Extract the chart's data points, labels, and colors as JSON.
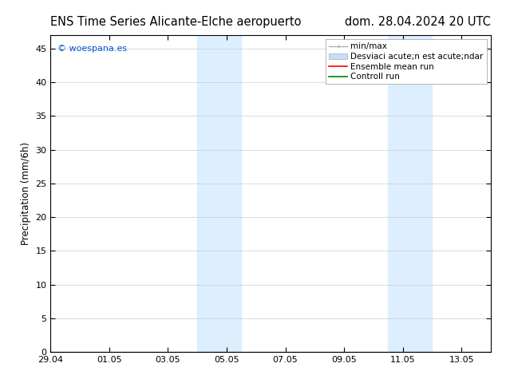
{
  "title_left": "ENS Time Series Alicante-Elche aeropuerto",
  "title_right": "dom. 28.04.2024 20 UTC",
  "ylabel": "Precipitation (mm/6h)",
  "watermark": "© woespana.es",
  "watermark_color": "#0055cc",
  "background_color": "#ffffff",
  "plot_bg_color": "#ffffff",
  "ylim": [
    0,
    47
  ],
  "yticks": [
    0,
    5,
    10,
    15,
    20,
    25,
    30,
    35,
    40,
    45
  ],
  "xlim": [
    0,
    15
  ],
  "xtick_labels": [
    "29.04",
    "01.05",
    "03.05",
    "05.05",
    "07.05",
    "09.05",
    "11.05",
    "13.05"
  ],
  "xtick_positions_days": [
    0,
    2,
    4,
    6,
    8,
    10,
    12,
    14
  ],
  "shaded_bands": [
    {
      "xstart_day": 5.0,
      "xend_day": 6.5,
      "color": "#ddeeff"
    },
    {
      "xstart_day": 11.5,
      "xend_day": 13.0,
      "color": "#ddeeff"
    }
  ],
  "legend_items": [
    {
      "label": "min/max",
      "color": "#aaaaaa",
      "type": "errbar"
    },
    {
      "label": "Desviaci acute;n est acute;ndar",
      "color": "#ccddf0",
      "type": "box"
    },
    {
      "label": "Ensemble mean run",
      "color": "#ff0000",
      "type": "line"
    },
    {
      "label": "Controll run",
      "color": "#008000",
      "type": "line"
    }
  ],
  "title_fontsize": 10.5,
  "axis_fontsize": 8.5,
  "tick_fontsize": 8,
  "legend_fontsize": 7.5
}
